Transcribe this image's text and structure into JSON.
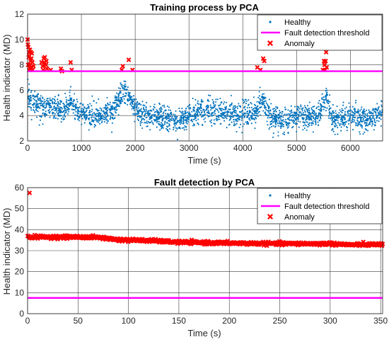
{
  "colors": {
    "healthy": "#0072BD",
    "threshold": "#FF00FF",
    "anomaly": "#FF0000",
    "grid": "#262626",
    "axis": "#262626"
  },
  "chart_data": [
    {
      "type": "scatter",
      "title": "Training process by PCA",
      "xlabel": "Time (s)",
      "ylabel": "Health indicator (MD)",
      "xlim": [
        0,
        6600
      ],
      "ylim": [
        2,
        12
      ],
      "xticks": [
        0,
        1000,
        2000,
        3000,
        4000,
        5000,
        6000
      ],
      "yticks": [
        2,
        4,
        6,
        8,
        10,
        12
      ],
      "grid": true,
      "legend_position": "top-right",
      "threshold": 7.5,
      "series": [
        {
          "name": "Healthy",
          "marker": "dot",
          "color": "#0072BD",
          "trend": [
            [
              0,
              5.6
            ],
            [
              150,
              5.0
            ],
            [
              300,
              4.6
            ],
            [
              500,
              4.7
            ],
            [
              700,
              4.3
            ],
            [
              800,
              5.2
            ],
            [
              950,
              4.2
            ],
            [
              1300,
              4.0
            ],
            [
              1600,
              4.3
            ],
            [
              1750,
              5.8
            ],
            [
              1900,
              5.3
            ],
            [
              2050,
              4.2
            ],
            [
              2400,
              3.9
            ],
            [
              2600,
              3.7
            ],
            [
              2800,
              3.5
            ],
            [
              3000,
              4.0
            ],
            [
              3300,
              4.5
            ],
            [
              3600,
              4.2
            ],
            [
              4000,
              4.0
            ],
            [
              4250,
              4.4
            ],
            [
              4350,
              5.4
            ],
            [
              4500,
              3.9
            ],
            [
              4800,
              3.6
            ],
            [
              5100,
              4.0
            ],
            [
              5400,
              3.9
            ],
            [
              5550,
              5.5
            ],
            [
              5650,
              3.7
            ],
            [
              6000,
              3.9
            ],
            [
              6300,
              3.7
            ],
            [
              6600,
              4.2
            ]
          ],
          "spread": 0.85
        },
        {
          "name": "Fault detection threshold",
          "marker": "line",
          "color": "#FF00FF",
          "x": [
            0,
            6600
          ],
          "y": [
            7.5,
            7.5
          ]
        },
        {
          "name": "Anomaly",
          "marker": "x",
          "color": "#FF0000",
          "points": [
            [
              0,
              10.0
            ],
            [
              15,
              9.4
            ],
            [
              25,
              9.0
            ],
            [
              35,
              8.7
            ],
            [
              45,
              9.2
            ],
            [
              55,
              8.3
            ],
            [
              65,
              7.8
            ],
            [
              80,
              8.9
            ],
            [
              95,
              7.6
            ],
            [
              110,
              7.9
            ],
            [
              10,
              8.0
            ],
            [
              30,
              7.6
            ],
            [
              50,
              7.7
            ],
            [
              70,
              8.5
            ],
            [
              90,
              8.2
            ],
            [
              40,
              8.0
            ],
            [
              20,
              8.6
            ],
            [
              60,
              9.0
            ],
            [
              5,
              9.6
            ],
            [
              260,
              8.2
            ],
            [
              280,
              7.9
            ],
            [
              300,
              8.5
            ],
            [
              320,
              8.6
            ],
            [
              340,
              8.0
            ],
            [
              360,
              7.7
            ],
            [
              290,
              7.6
            ],
            [
              310,
              8.2
            ],
            [
              350,
              8.3
            ],
            [
              430,
              7.6
            ],
            [
              620,
              7.7
            ],
            [
              640,
              7.5
            ],
            [
              800,
              8.2
            ],
            [
              820,
              7.6
            ],
            [
              1750,
              7.6
            ],
            [
              1770,
              7.9
            ],
            [
              1880,
              8.4
            ],
            [
              1950,
              7.6
            ],
            [
              4270,
              7.8
            ],
            [
              4330,
              7.6
            ],
            [
              4380,
              8.5
            ],
            [
              4400,
              8.3
            ],
            [
              5490,
              7.6
            ],
            [
              5520,
              8.0
            ],
            [
              5540,
              8.3
            ],
            [
              5560,
              7.8
            ],
            [
              5530,
              7.6
            ],
            [
              5550,
              9.0
            ],
            [
              5510,
              8.3
            ]
          ]
        }
      ]
    },
    {
      "type": "scatter",
      "title": "Fault detection by PCA",
      "xlabel": "Time (s)",
      "ylabel": "Health indicator (MD)",
      "xlim": [
        0,
        352
      ],
      "ylim": [
        0,
        60
      ],
      "xticks": [
        0,
        50,
        100,
        150,
        200,
        250,
        300,
        350
      ],
      "yticks": [
        0,
        10,
        20,
        30,
        40,
        50,
        60
      ],
      "grid": true,
      "legend_position": "top-right",
      "threshold": 7.5,
      "series": [
        {
          "name": "Healthy",
          "marker": "dot",
          "color": "#0072BD",
          "points": []
        },
        {
          "name": "Fault detection threshold",
          "marker": "line",
          "color": "#FF00FF",
          "x": [
            0,
            352
          ],
          "y": [
            7.5,
            7.5
          ]
        },
        {
          "name": "Anomaly",
          "marker": "x",
          "color": "#FF0000",
          "outlier": [
            2,
            57.5
          ],
          "trend": [
            [
              0,
              36.5
            ],
            [
              50,
              36.5
            ],
            [
              70,
              36.3
            ],
            [
              90,
              35.2
            ],
            [
              120,
              34.8
            ],
            [
              150,
              34.0
            ],
            [
              200,
              33.6
            ],
            [
              250,
              33.3
            ],
            [
              300,
              33.3
            ],
            [
              320,
              32.8
            ],
            [
              352,
              33.0
            ]
          ],
          "spread": 0.7
        }
      ]
    }
  ]
}
